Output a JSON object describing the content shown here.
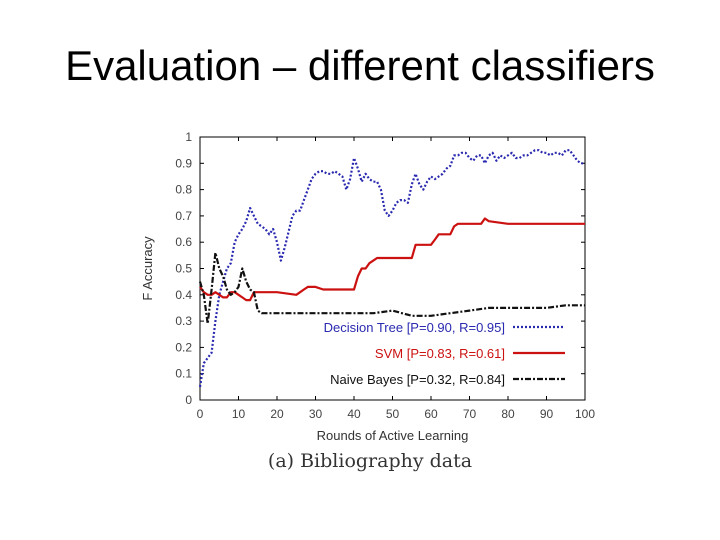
{
  "slide": {
    "title": "Evaluation – different classifiers",
    "caption": "(a) Bibliography data"
  },
  "chart_data": {
    "type": "line",
    "xlabel": "Rounds of Active Learning",
    "ylabel": "F Accuracy",
    "xlim": [
      0,
      100
    ],
    "ylim": [
      0,
      1
    ],
    "xticks": [
      0,
      10,
      20,
      30,
      40,
      50,
      60,
      70,
      80,
      90,
      100
    ],
    "yticks": [
      0,
      0.1,
      0.2,
      0.3,
      0.4,
      0.5,
      0.6,
      0.7,
      0.8,
      0.9,
      1
    ],
    "grid": false,
    "legend_position": "bottom-right",
    "series": [
      {
        "name": "Decision Tree [P=0.90, R=0.95]",
        "color": "#2a2ab0",
        "style": "dotted",
        "points": [
          [
            0,
            0.05
          ],
          [
            1,
            0.14
          ],
          [
            2,
            0.16
          ],
          [
            3,
            0.18
          ],
          [
            4,
            0.3
          ],
          [
            5,
            0.4
          ],
          [
            6,
            0.45
          ],
          [
            7,
            0.5
          ],
          [
            8,
            0.52
          ],
          [
            9,
            0.6
          ],
          [
            10,
            0.63
          ],
          [
            11,
            0.65
          ],
          [
            12,
            0.68
          ],
          [
            13,
            0.73
          ],
          [
            14,
            0.7
          ],
          [
            15,
            0.67
          ],
          [
            16,
            0.66
          ],
          [
            17,
            0.65
          ],
          [
            18,
            0.63
          ],
          [
            19,
            0.65
          ],
          [
            20,
            0.6
          ],
          [
            21,
            0.53
          ],
          [
            22,
            0.58
          ],
          [
            23,
            0.64
          ],
          [
            24,
            0.7
          ],
          [
            25,
            0.72
          ],
          [
            26,
            0.72
          ],
          [
            27,
            0.76
          ],
          [
            28,
            0.8
          ],
          [
            29,
            0.84
          ],
          [
            30,
            0.86
          ],
          [
            31,
            0.87
          ],
          [
            32,
            0.87
          ],
          [
            33,
            0.86
          ],
          [
            34,
            0.86
          ],
          [
            35,
            0.87
          ],
          [
            36,
            0.86
          ],
          [
            37,
            0.85
          ],
          [
            38,
            0.8
          ],
          [
            39,
            0.84
          ],
          [
            40,
            0.92
          ],
          [
            41,
            0.88
          ],
          [
            42,
            0.83
          ],
          [
            43,
            0.86
          ],
          [
            44,
            0.84
          ],
          [
            45,
            0.83
          ],
          [
            46,
            0.83
          ],
          [
            47,
            0.8
          ],
          [
            48,
            0.72
          ],
          [
            49,
            0.7
          ],
          [
            50,
            0.72
          ],
          [
            51,
            0.75
          ],
          [
            52,
            0.76
          ],
          [
            53,
            0.76
          ],
          [
            54,
            0.75
          ],
          [
            55,
            0.82
          ],
          [
            56,
            0.86
          ],
          [
            57,
            0.82
          ],
          [
            58,
            0.8
          ],
          [
            59,
            0.83
          ],
          [
            60,
            0.85
          ],
          [
            61,
            0.84
          ],
          [
            62,
            0.85
          ],
          [
            63,
            0.86
          ],
          [
            64,
            0.88
          ],
          [
            65,
            0.89
          ],
          [
            66,
            0.93
          ],
          [
            67,
            0.93
          ],
          [
            68,
            0.94
          ],
          [
            69,
            0.94
          ],
          [
            70,
            0.92
          ],
          [
            71,
            0.91
          ],
          [
            72,
            0.93
          ],
          [
            73,
            0.93
          ],
          [
            74,
            0.9
          ],
          [
            75,
            0.93
          ],
          [
            76,
            0.94
          ],
          [
            77,
            0.91
          ],
          [
            78,
            0.93
          ],
          [
            79,
            0.92
          ],
          [
            80,
            0.93
          ],
          [
            81,
            0.94
          ],
          [
            82,
            0.92
          ],
          [
            83,
            0.92
          ],
          [
            84,
            0.93
          ],
          [
            85,
            0.93
          ],
          [
            86,
            0.94
          ],
          [
            87,
            0.95
          ],
          [
            88,
            0.95
          ],
          [
            89,
            0.94
          ],
          [
            90,
            0.94
          ],
          [
            91,
            0.93
          ],
          [
            92,
            0.94
          ],
          [
            93,
            0.94
          ],
          [
            94,
            0.93
          ],
          [
            95,
            0.95
          ],
          [
            96,
            0.95
          ],
          [
            97,
            0.93
          ],
          [
            98,
            0.91
          ],
          [
            99,
            0.9
          ],
          [
            100,
            0.9
          ]
        ]
      },
      {
        "name": "SVM [P=0.83, R=0.61]",
        "color": "#cc1111",
        "style": "solid",
        "points": [
          [
            0,
            0.43
          ],
          [
            1,
            0.41
          ],
          [
            2,
            0.4
          ],
          [
            3,
            0.4
          ],
          [
            4,
            0.41
          ],
          [
            5,
            0.4
          ],
          [
            6,
            0.39
          ],
          [
            7,
            0.39
          ],
          [
            8,
            0.41
          ],
          [
            9,
            0.41
          ],
          [
            10,
            0.4
          ],
          [
            11,
            0.39
          ],
          [
            12,
            0.38
          ],
          [
            13,
            0.38
          ],
          [
            14,
            0.41
          ],
          [
            15,
            0.41
          ],
          [
            20,
            0.41
          ],
          [
            25,
            0.4
          ],
          [
            26,
            0.41
          ],
          [
            27,
            0.42
          ],
          [
            28,
            0.43
          ],
          [
            30,
            0.43
          ],
          [
            32,
            0.42
          ],
          [
            40,
            0.42
          ],
          [
            41,
            0.47
          ],
          [
            42,
            0.5
          ],
          [
            43,
            0.5
          ],
          [
            44,
            0.52
          ],
          [
            45,
            0.53
          ],
          [
            46,
            0.54
          ],
          [
            50,
            0.54
          ],
          [
            55,
            0.54
          ],
          [
            56,
            0.59
          ],
          [
            60,
            0.59
          ],
          [
            61,
            0.61
          ],
          [
            62,
            0.63
          ],
          [
            65,
            0.63
          ],
          [
            66,
            0.66
          ],
          [
            67,
            0.67
          ],
          [
            70,
            0.67
          ],
          [
            73,
            0.67
          ],
          [
            74,
            0.69
          ],
          [
            75,
            0.68
          ],
          [
            80,
            0.67
          ],
          [
            90,
            0.67
          ],
          [
            100,
            0.67
          ]
        ]
      },
      {
        "name": "Naive Bayes [P=0.32, R=0.84]",
        "color": "#111111",
        "style": "dashdot",
        "points": [
          [
            0,
            0.45
          ],
          [
            1,
            0.4
          ],
          [
            2,
            0.29
          ],
          [
            3,
            0.42
          ],
          [
            4,
            0.56
          ],
          [
            5,
            0.5
          ],
          [
            6,
            0.47
          ],
          [
            7,
            0.42
          ],
          [
            8,
            0.4
          ],
          [
            9,
            0.41
          ],
          [
            10,
            0.43
          ],
          [
            11,
            0.5
          ],
          [
            12,
            0.45
          ],
          [
            13,
            0.42
          ],
          [
            14,
            0.41
          ],
          [
            15,
            0.34
          ],
          [
            16,
            0.33
          ],
          [
            20,
            0.33
          ],
          [
            25,
            0.33
          ],
          [
            30,
            0.33
          ],
          [
            35,
            0.33
          ],
          [
            40,
            0.33
          ],
          [
            45,
            0.33
          ],
          [
            50,
            0.34
          ],
          [
            55,
            0.32
          ],
          [
            60,
            0.32
          ],
          [
            65,
            0.33
          ],
          [
            70,
            0.34
          ],
          [
            75,
            0.35
          ],
          [
            80,
            0.35
          ],
          [
            85,
            0.35
          ],
          [
            90,
            0.35
          ],
          [
            95,
            0.36
          ],
          [
            100,
            0.36
          ]
        ]
      }
    ]
  }
}
